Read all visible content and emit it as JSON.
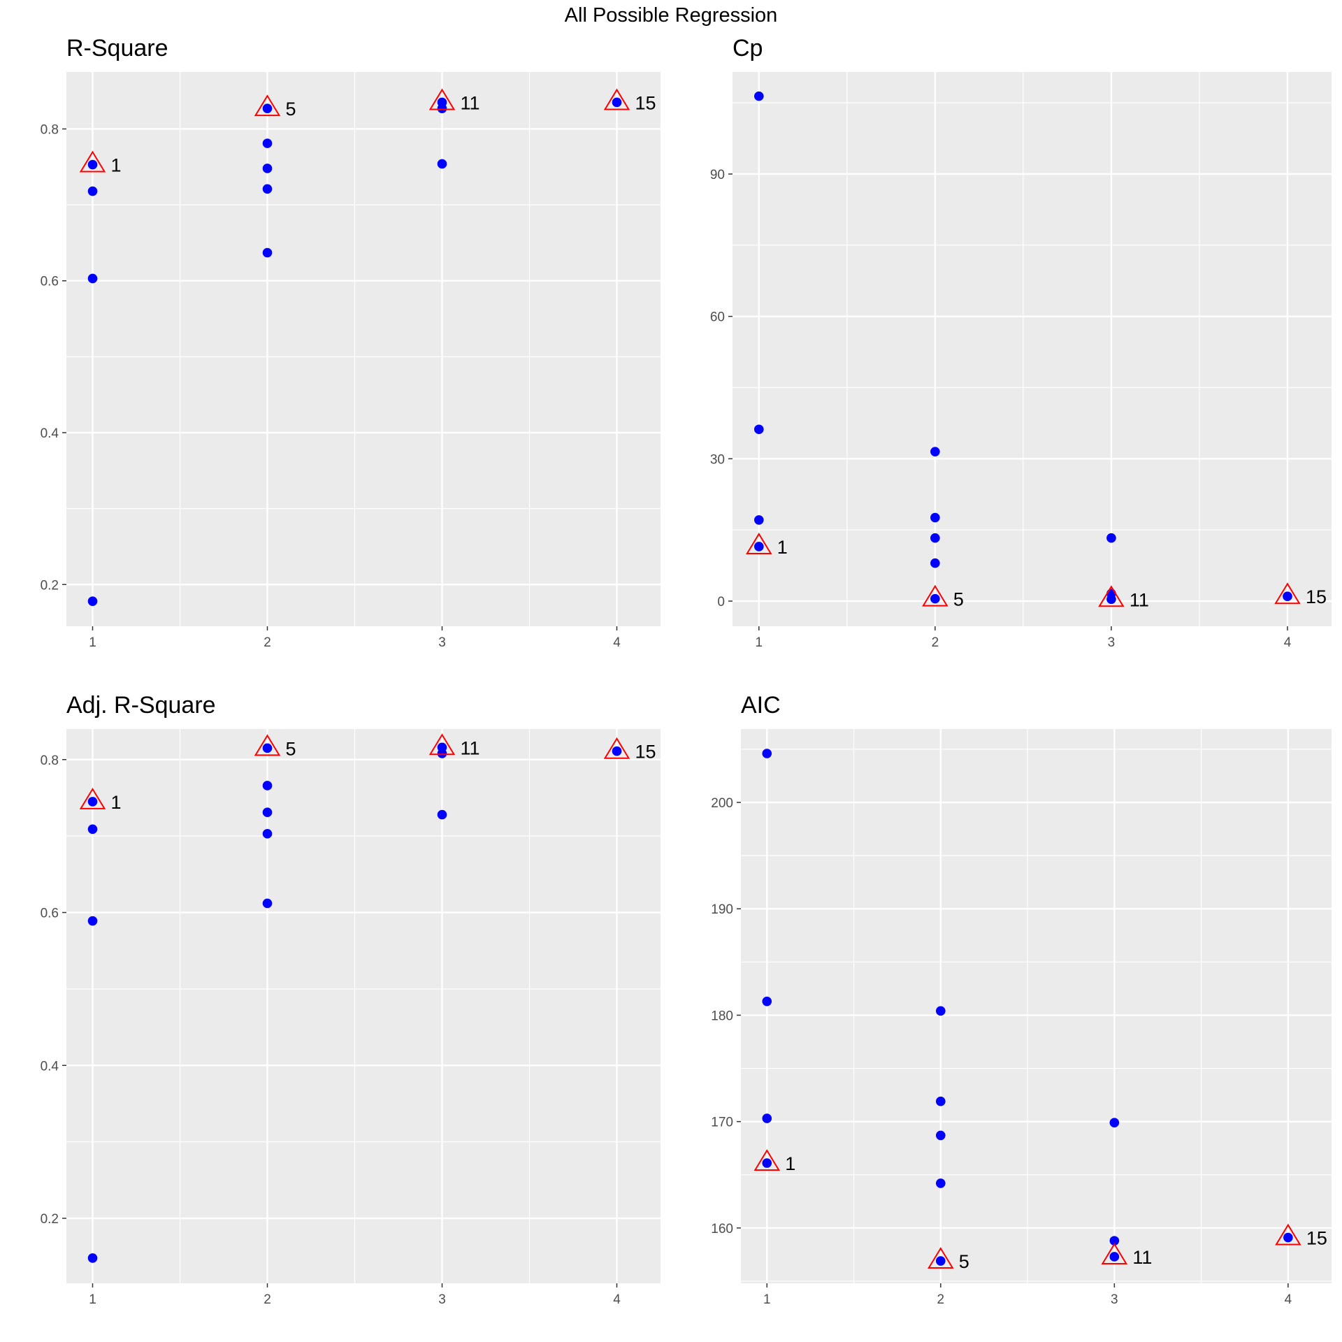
{
  "title": "All Possible Regression",
  "colors": {
    "point": "#0000ff",
    "highlight": "#ff0000",
    "panel_bg": "#ebebeb",
    "grid": "#ffffff"
  },
  "chart_data": [
    {
      "type": "scatter",
      "title": "R-Square",
      "xlabel": "",
      "ylabel": "",
      "xlim": [
        0.85,
        4.25
      ],
      "ylim": [
        0.145,
        0.875
      ],
      "xticks": [
        1,
        2,
        3,
        4
      ],
      "yticks": [
        0.2,
        0.4,
        0.6,
        0.8
      ],
      "ytick_labels": [
        "0.2",
        "0.4",
        "0.6",
        "0.8"
      ],
      "points": [
        {
          "x": 1,
          "y": 0.753
        },
        {
          "x": 1,
          "y": 0.718
        },
        {
          "x": 1,
          "y": 0.603
        },
        {
          "x": 1,
          "y": 0.178
        },
        {
          "x": 2,
          "y": 0.827
        },
        {
          "x": 2,
          "y": 0.781
        },
        {
          "x": 2,
          "y": 0.748
        },
        {
          "x": 2,
          "y": 0.721
        },
        {
          "x": 2,
          "y": 0.637
        },
        {
          "x": 3,
          "y": 0.835
        },
        {
          "x": 3,
          "y": 0.827
        },
        {
          "x": 3,
          "y": 0.754
        },
        {
          "x": 4,
          "y": 0.835
        }
      ],
      "highlights": [
        {
          "x": 1,
          "y": 0.753,
          "label": "1"
        },
        {
          "x": 2,
          "y": 0.827,
          "label": "5"
        },
        {
          "x": 3,
          "y": 0.835,
          "label": "11"
        },
        {
          "x": 4,
          "y": 0.835,
          "label": "15"
        }
      ],
      "grid": true
    },
    {
      "type": "scatter",
      "title": "Cp",
      "xlabel": "",
      "ylabel": "",
      "xlim": [
        0.85,
        4.25
      ],
      "ylim": [
        -5.3,
        111.5
      ],
      "xticks": [
        1,
        2,
        3,
        4
      ],
      "yticks": [
        0,
        30,
        60,
        90
      ],
      "ytick_labels": [
        "0",
        "30",
        "60",
        "90"
      ],
      "points": [
        {
          "x": 1,
          "y": 106.4
        },
        {
          "x": 1,
          "y": 36.2
        },
        {
          "x": 1,
          "y": 17.1
        },
        {
          "x": 1,
          "y": 11.5
        },
        {
          "x": 2,
          "y": 31.5
        },
        {
          "x": 2,
          "y": 17.6
        },
        {
          "x": 2,
          "y": 13.3
        },
        {
          "x": 2,
          "y": 8.0
        },
        {
          "x": 2,
          "y": 0.5
        },
        {
          "x": 3,
          "y": 13.3
        },
        {
          "x": 3,
          "y": 1.6
        },
        {
          "x": 3,
          "y": 0.4
        },
        {
          "x": 4,
          "y": 1.0
        }
      ],
      "highlights": [
        {
          "x": 1,
          "y": 11.5,
          "label": "1"
        },
        {
          "x": 2,
          "y": 0.5,
          "label": "5"
        },
        {
          "x": 3,
          "y": 0.4,
          "label": "11"
        },
        {
          "x": 4,
          "y": 1.0,
          "label": "15"
        }
      ],
      "grid": true
    },
    {
      "type": "scatter",
      "title": "Adj. R-Square",
      "xlabel": "",
      "ylabel": "",
      "xlim": [
        0.85,
        4.25
      ],
      "ylim": [
        0.115,
        0.84
      ],
      "xticks": [
        1,
        2,
        3,
        4
      ],
      "yticks": [
        0.2,
        0.4,
        0.6,
        0.8
      ],
      "ytick_labels": [
        "0.2",
        "0.4",
        "0.6",
        "0.8"
      ],
      "points": [
        {
          "x": 1,
          "y": 0.745
        },
        {
          "x": 1,
          "y": 0.709
        },
        {
          "x": 1,
          "y": 0.589
        },
        {
          "x": 1,
          "y": 0.148
        },
        {
          "x": 2,
          "y": 0.815
        },
        {
          "x": 2,
          "y": 0.766
        },
        {
          "x": 2,
          "y": 0.731
        },
        {
          "x": 2,
          "y": 0.703
        },
        {
          "x": 2,
          "y": 0.612
        },
        {
          "x": 3,
          "y": 0.816
        },
        {
          "x": 3,
          "y": 0.808
        },
        {
          "x": 3,
          "y": 0.728
        },
        {
          "x": 4,
          "y": 0.811
        }
      ],
      "highlights": [
        {
          "x": 1,
          "y": 0.745,
          "label": "1"
        },
        {
          "x": 2,
          "y": 0.815,
          "label": "5"
        },
        {
          "x": 3,
          "y": 0.816,
          "label": "11"
        },
        {
          "x": 4,
          "y": 0.811,
          "label": "15"
        }
      ],
      "grid": true
    },
    {
      "type": "scatter",
      "title": "AIC",
      "xlabel": "",
      "ylabel": "",
      "xlim": [
        0.85,
        4.25
      ],
      "ylim": [
        154.8,
        206.9
      ],
      "xticks": [
        1,
        2,
        3,
        4
      ],
      "yticks": [
        160,
        170,
        180,
        190,
        200
      ],
      "ytick_labels": [
        "160",
        "170",
        "180",
        "190",
        "200"
      ],
      "points": [
        {
          "x": 1,
          "y": 204.6
        },
        {
          "x": 1,
          "y": 181.3
        },
        {
          "x": 1,
          "y": 170.3
        },
        {
          "x": 1,
          "y": 166.1
        },
        {
          "x": 2,
          "y": 180.4
        },
        {
          "x": 2,
          "y": 171.9
        },
        {
          "x": 2,
          "y": 168.7
        },
        {
          "x": 2,
          "y": 164.2
        },
        {
          "x": 2,
          "y": 156.9
        },
        {
          "x": 3,
          "y": 169.9
        },
        {
          "x": 3,
          "y": 158.8
        },
        {
          "x": 3,
          "y": 157.3
        },
        {
          "x": 4,
          "y": 159.1
        }
      ],
      "highlights": [
        {
          "x": 1,
          "y": 166.1,
          "label": "1"
        },
        {
          "x": 2,
          "y": 156.9,
          "label": "5"
        },
        {
          "x": 3,
          "y": 157.3,
          "label": "11"
        },
        {
          "x": 4,
          "y": 159.1,
          "label": "15"
        }
      ],
      "grid": true
    }
  ]
}
